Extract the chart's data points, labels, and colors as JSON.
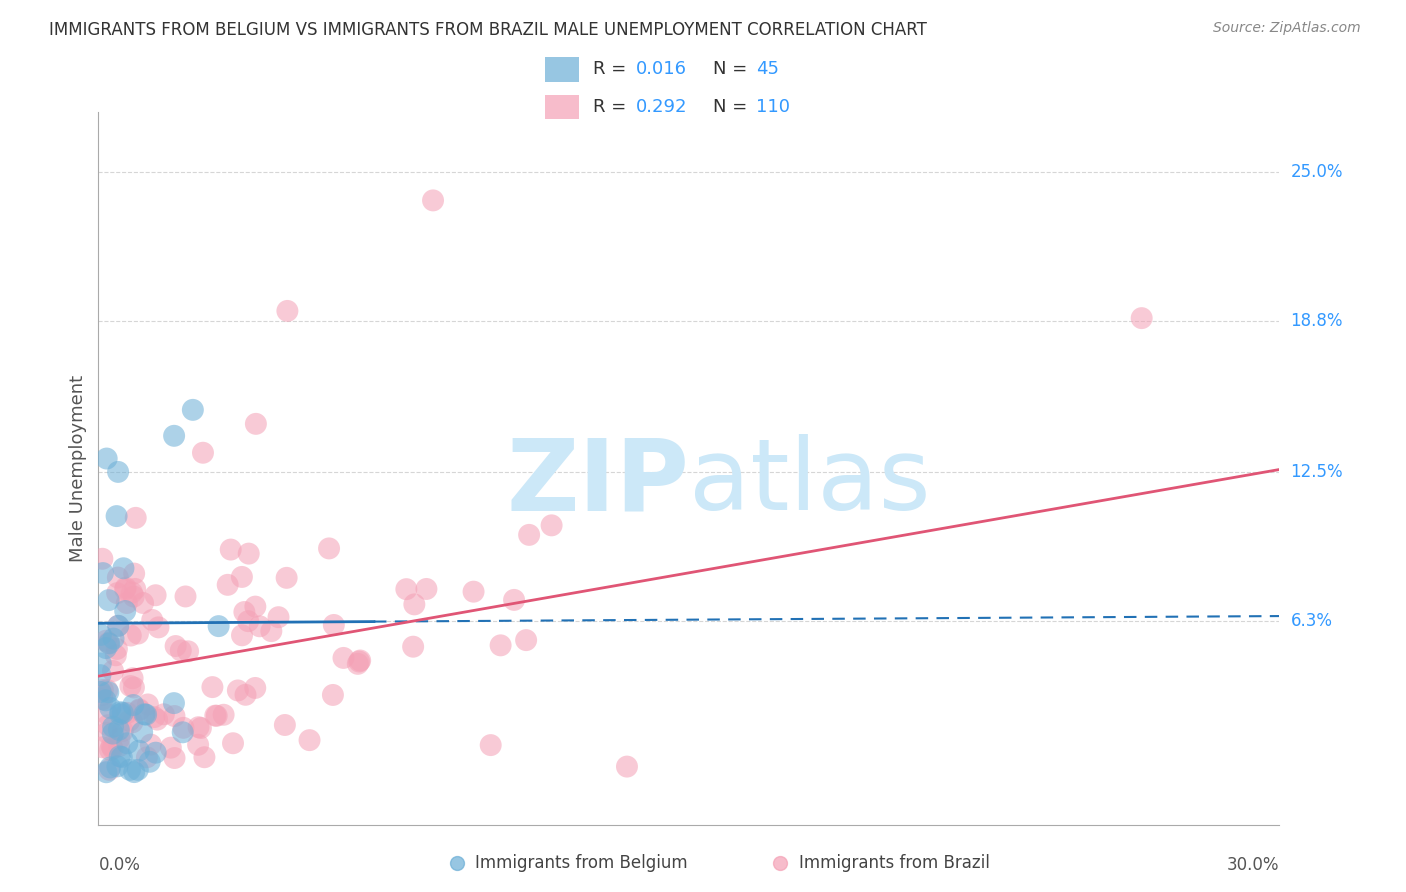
{
  "title": "IMMIGRANTS FROM BELGIUM VS IMMIGRANTS FROM BRAZIL MALE UNEMPLOYMENT CORRELATION CHART",
  "source": "Source: ZipAtlas.com",
  "ylabel": "Male Unemployment",
  "xlim": [
    0.0,
    0.3
  ],
  "ylim": [
    -0.022,
    0.275
  ],
  "right_yticks": [
    0.063,
    0.125,
    0.188,
    0.25
  ],
  "right_ytick_labels": [
    "6.3%",
    "12.5%",
    "18.8%",
    "25.0%"
  ],
  "watermark_zip": "ZIP",
  "watermark_atlas": "atlas",
  "watermark_color": "#cce8f8",
  "belgium_color": "#6baed6",
  "brazil_color": "#f4a0b5",
  "belgium_line_color": "#2171b5",
  "brazil_line_color": "#e05575",
  "grid_color": "#cccccc",
  "background_color": "#ffffff",
  "n_belgium": 45,
  "n_brazil": 110,
  "bel_line_x0": 0.0,
  "bel_line_x_solid_end": 0.07,
  "bel_line_x1": 0.3,
  "bel_line_y0": 0.062,
  "bel_line_y1": 0.065,
  "bra_line_x0": 0.0,
  "bra_line_x1": 0.3,
  "bra_line_y0": 0.04,
  "bra_line_y1": 0.126
}
